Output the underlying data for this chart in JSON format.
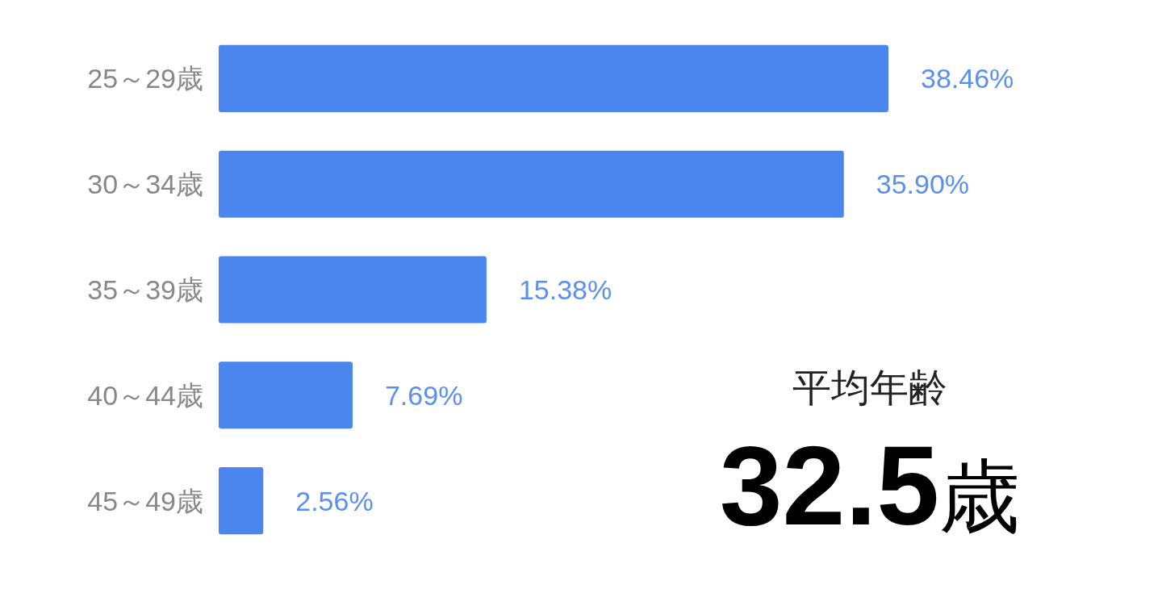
{
  "chart_data": {
    "type": "bar",
    "orientation": "horizontal",
    "categories": [
      "25～29歳",
      "30～34歳",
      "35～39歳",
      "40～44歳",
      "45～49歳"
    ],
    "values": [
      38.46,
      35.9,
      15.38,
      7.69,
      2.56
    ],
    "value_labels": [
      "38.46%",
      "35.90%",
      "15.38%",
      "7.69%",
      "2.56%"
    ],
    "color": "#4a86ee",
    "annotations": [
      "平均年齢",
      "**32.5**歳"
    ]
  }
}
